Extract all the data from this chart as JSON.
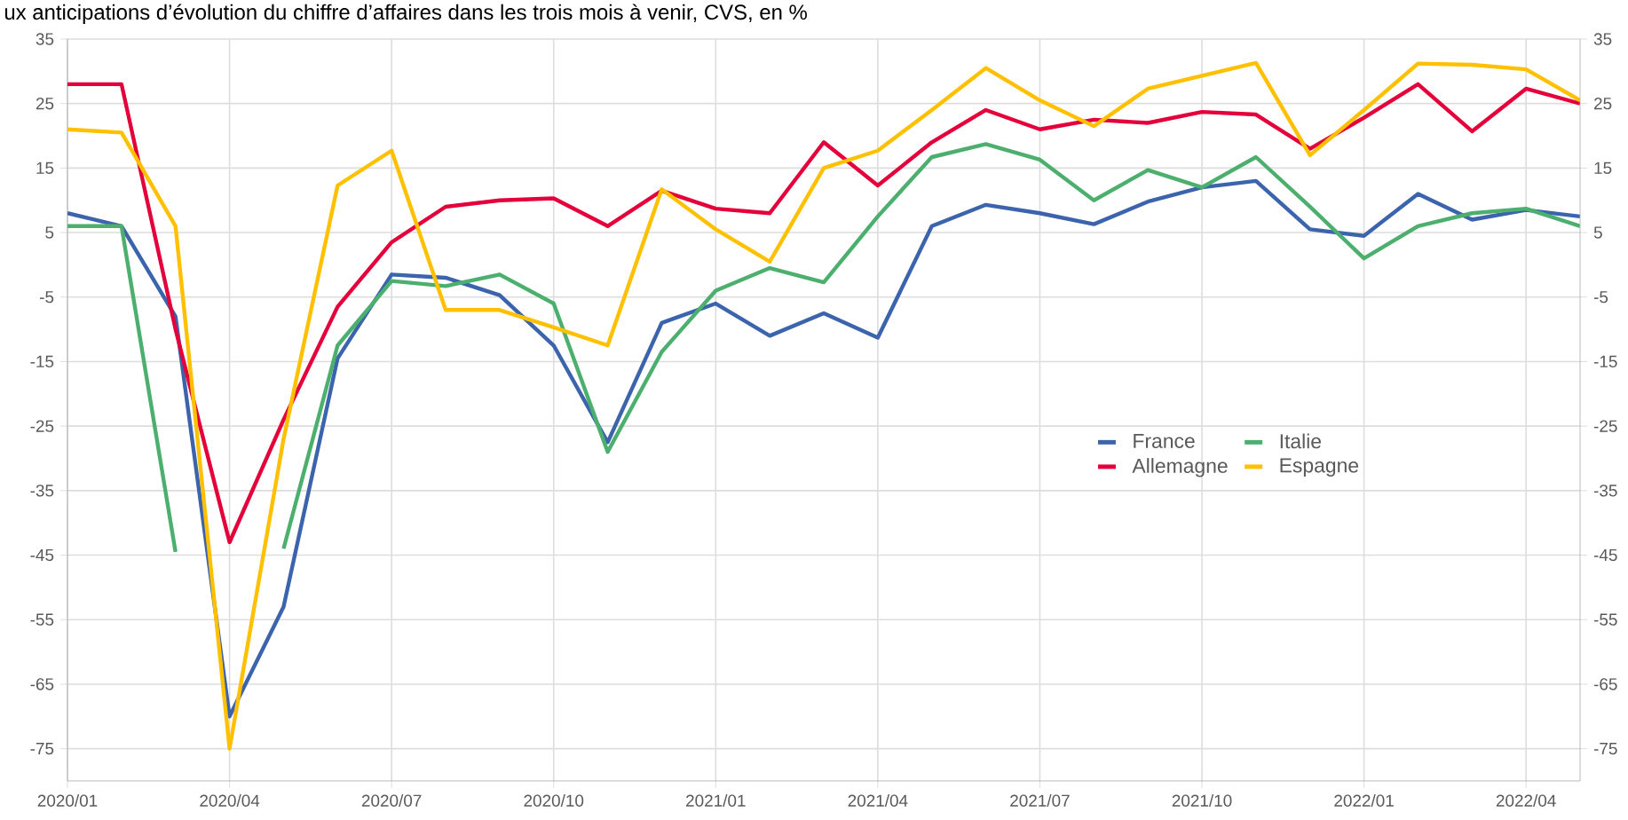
{
  "chart_data": {
    "type": "line",
    "title": "ux anticipations d’évolution du chiffre d’affaires dans les trois mois à venir, CVS, en %",
    "x": [
      "2020-01",
      "2020-02",
      "2020-03",
      "2020-04",
      "2020-05",
      "2020-06",
      "2020-07",
      "2020-08",
      "2020-09",
      "2020-10",
      "2020-11",
      "2020-12",
      "2021-01",
      "2021-02",
      "2021-03",
      "2021-04",
      "2021-05",
      "2021-06",
      "2021-07",
      "2021-08",
      "2021-09",
      "2021-10",
      "2021-11",
      "2021-12",
      "2022-01",
      "2022-02",
      "2022-03",
      "2022-04",
      "2022-05"
    ],
    "series": [
      {
        "name": "France",
        "color": "#3b64ad",
        "values": [
          8,
          6,
          -8,
          -70,
          -53,
          -14.5,
          -1.5,
          -2,
          -4.7,
          -12.5,
          -27.5,
          -9,
          -6,
          -11,
          -7.5,
          -11.3,
          6,
          9.3,
          8,
          6.3,
          9.8,
          12,
          13,
          5.5,
          4.5,
          11,
          7,
          8.5,
          7.5
        ]
      },
      {
        "name": "Italie",
        "color": "#4caf6e",
        "values": [
          6,
          6,
          -44.5,
          null,
          -44,
          -12.5,
          -2.5,
          -3.3,
          -1.5,
          -6,
          -29,
          -13.5,
          -4,
          -0.5,
          -2.7,
          7.5,
          16.7,
          18.7,
          16.3,
          10,
          14.7,
          12,
          16.7,
          9,
          1,
          6,
          8,
          8.7,
          6
        ]
      },
      {
        "name": "Allemagne",
        "color": "#e4003a",
        "values": [
          28,
          28,
          -10,
          -43,
          -24,
          -6.5,
          3.5,
          9,
          10,
          10.3,
          6,
          11.5,
          8.7,
          8,
          19,
          12.3,
          19,
          24,
          21,
          22.5,
          22,
          23.7,
          23.3,
          18,
          22.8,
          28,
          20.7,
          27.3,
          25
        ]
      },
      {
        "name": "Espagne",
        "color": "#ffc000",
        "values": [
          21,
          20.5,
          6,
          -75,
          -27,
          12.3,
          17.7,
          -7,
          -7,
          -9.7,
          -12.5,
          11.7,
          5.5,
          0.5,
          15,
          17.7,
          24,
          30.5,
          25.5,
          21.5,
          27.3,
          29.3,
          31.3,
          17,
          24,
          31.2,
          31,
          30.3,
          25.5
        ]
      }
    ],
    "xlim": [
      "2020-01",
      "2022-05"
    ],
    "xticks": [
      {
        "value": "2020-01",
        "label": "2020/01"
      },
      {
        "value": "2020-04",
        "label": "2020/04"
      },
      {
        "value": "2020-07",
        "label": "2020/07"
      },
      {
        "value": "2020-10",
        "label": "2020/10"
      },
      {
        "value": "2021-01",
        "label": "2021/01"
      },
      {
        "value": "2021-04",
        "label": "2021/04"
      },
      {
        "value": "2021-07",
        "label": "2021/07"
      },
      {
        "value": "2021-10",
        "label": "2021/10"
      },
      {
        "value": "2022-01",
        "label": "2022/01"
      },
      {
        "value": "2022-04",
        "label": "2022/04"
      }
    ],
    "ylim": [
      -80,
      35
    ],
    "yticks": [
      -75,
      -65,
      -55,
      -45,
      -35,
      -25,
      -15,
      -5,
      5,
      15,
      25,
      35
    ],
    "y2lim": [
      -80,
      35
    ],
    "y2ticks": [
      -75,
      -65,
      -55,
      -45,
      -35,
      -25,
      -15,
      -5,
      5,
      15,
      25,
      35
    ],
    "grid": true,
    "legend": "right",
    "marker": "none",
    "line_style": "solid"
  }
}
